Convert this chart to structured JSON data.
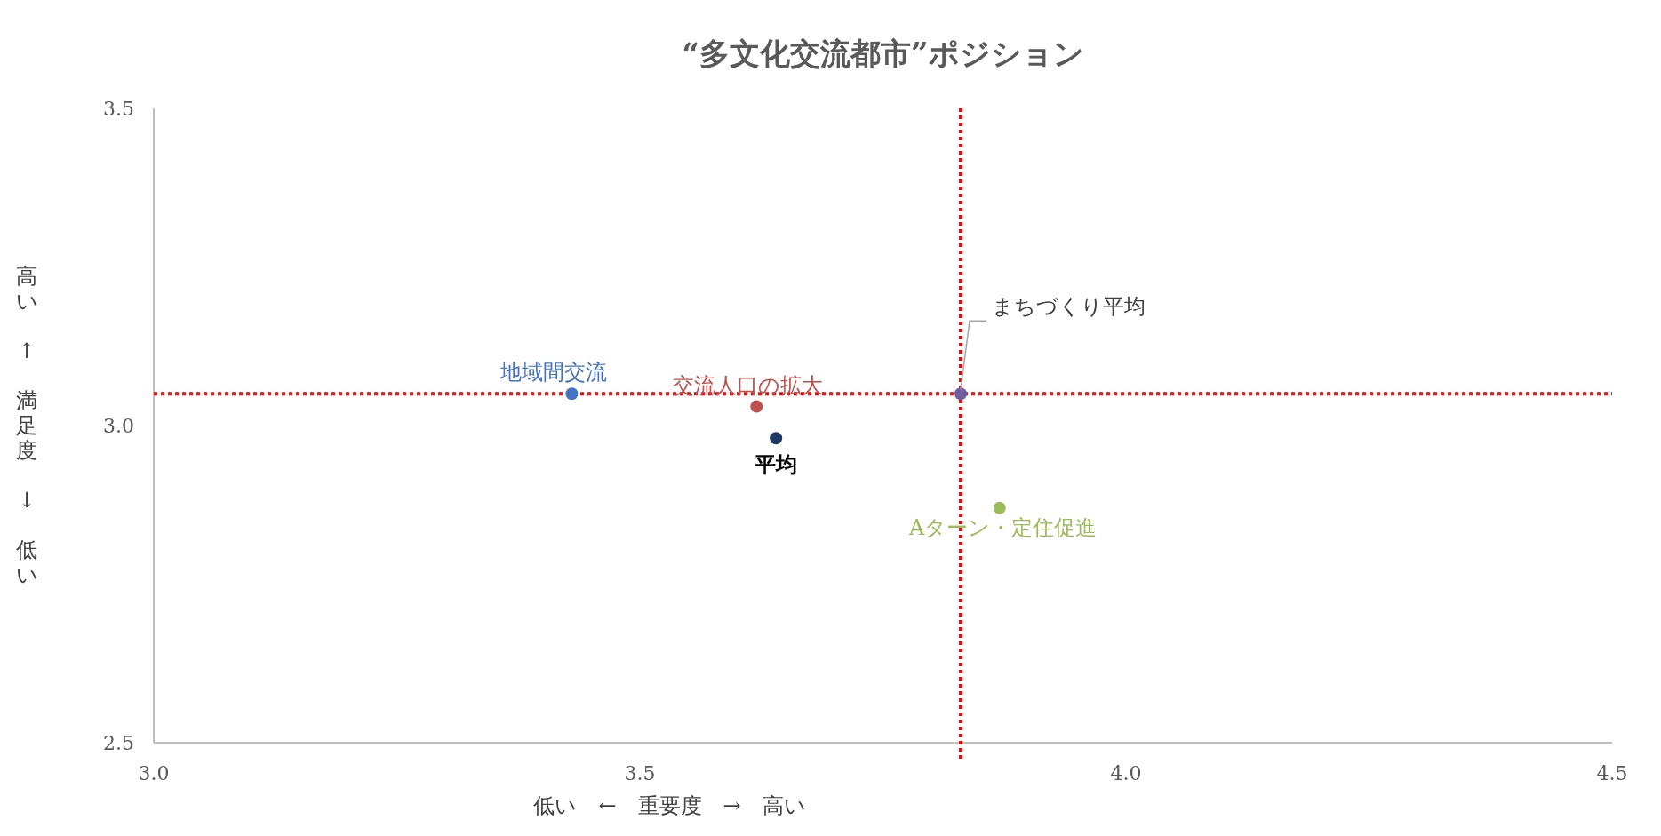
{
  "chart_data": {
    "type": "scatter",
    "title": "“多文化交流都市”ポジション",
    "xlabel": "低い　←　重要度　→　高い",
    "ylabel": "高い ↑ 満足度 ↓ 低い",
    "xlim": [
      3,
      4.5
    ],
    "xticks": [
      {
        "value": 3,
        "label": "3.0"
      },
      {
        "value": 3.5,
        "label": "3.5"
      },
      {
        "value": 4,
        "label": "4.0"
      },
      {
        "value": 4.5,
        "label": "4.5"
      }
    ],
    "ylim": [
      2.5,
      3.5
    ],
    "yticks": [
      {
        "value": 2.5,
        "label": "2.5"
      },
      {
        "value": 3,
        "label": "3.0"
      },
      {
        "value": 3.5,
        "label": "3.5"
      }
    ],
    "grid": false,
    "marker": "circle",
    "series": [
      {
        "name": "地域間交流",
        "color": "#4472c4",
        "x": [
          3.43
        ],
        "values": [
          3.05
        ]
      },
      {
        "name": "交流人口の拡大",
        "color": "#c0504d",
        "x": [
          3.62
        ],
        "values": [
          3.03
        ]
      },
      {
        "name": "平均",
        "color": "#1f3864",
        "x": [
          3.64
        ],
        "values": [
          2.98
        ]
      },
      {
        "name": "まちづくり平均",
        "color": "#6f5fa0",
        "x": [
          3.83
        ],
        "values": [
          3.05
        ]
      },
      {
        "name": "Aターン・定住促進",
        "color": "#9bbb59",
        "x": [
          3.87
        ],
        "values": [
          2.87
        ]
      }
    ],
    "ref_lines": [
      {
        "axis": "x",
        "value": 3.83,
        "color": "#ff0000",
        "line_style": "dotted"
      },
      {
        "axis": "y",
        "value": 3.05,
        "color": "#ff0000",
        "line_style": "dotted"
      }
    ]
  }
}
